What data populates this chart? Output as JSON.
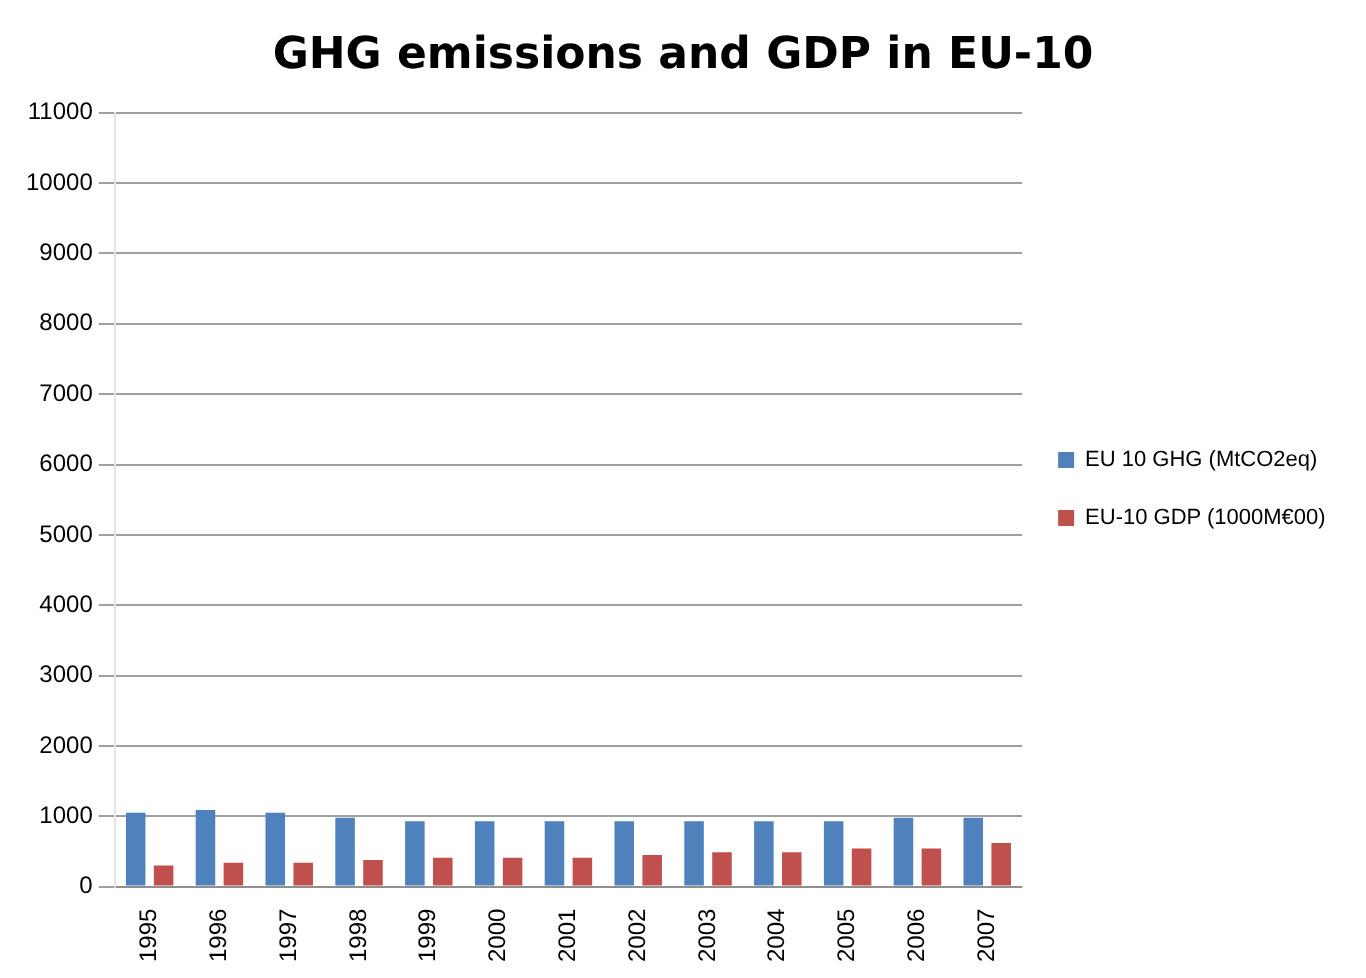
{
  "chart_data": {
    "type": "bar",
    "title": "GHG emissions and GDP in EU-10",
    "categories": [
      "1995",
      "1996",
      "1997",
      "1998",
      "1999",
      "2000",
      "2001",
      "2002",
      "2003",
      "2004",
      "2005",
      "2006",
      "2007"
    ],
    "series": [
      {
        "name": "EU 10 GHG (MtCO2eq)",
        "color": "#4f81bd",
        "values": [
          1050,
          1090,
          1050,
          980,
          930,
          930,
          930,
          930,
          930,
          930,
          930,
          980,
          980
        ]
      },
      {
        "name": "EU-10 GDP (1000M€00)",
        "color": "#c0504d",
        "values": [
          300,
          340,
          340,
          380,
          410,
          410,
          410,
          450,
          490,
          490,
          540,
          540,
          620
        ]
      }
    ],
    "ylim": [
      0,
      11000
    ],
    "yticks": [
      0,
      1000,
      2000,
      3000,
      4000,
      5000,
      6000,
      7000,
      8000,
      9000,
      10000,
      11000
    ],
    "grid": "y",
    "legend": "right"
  }
}
